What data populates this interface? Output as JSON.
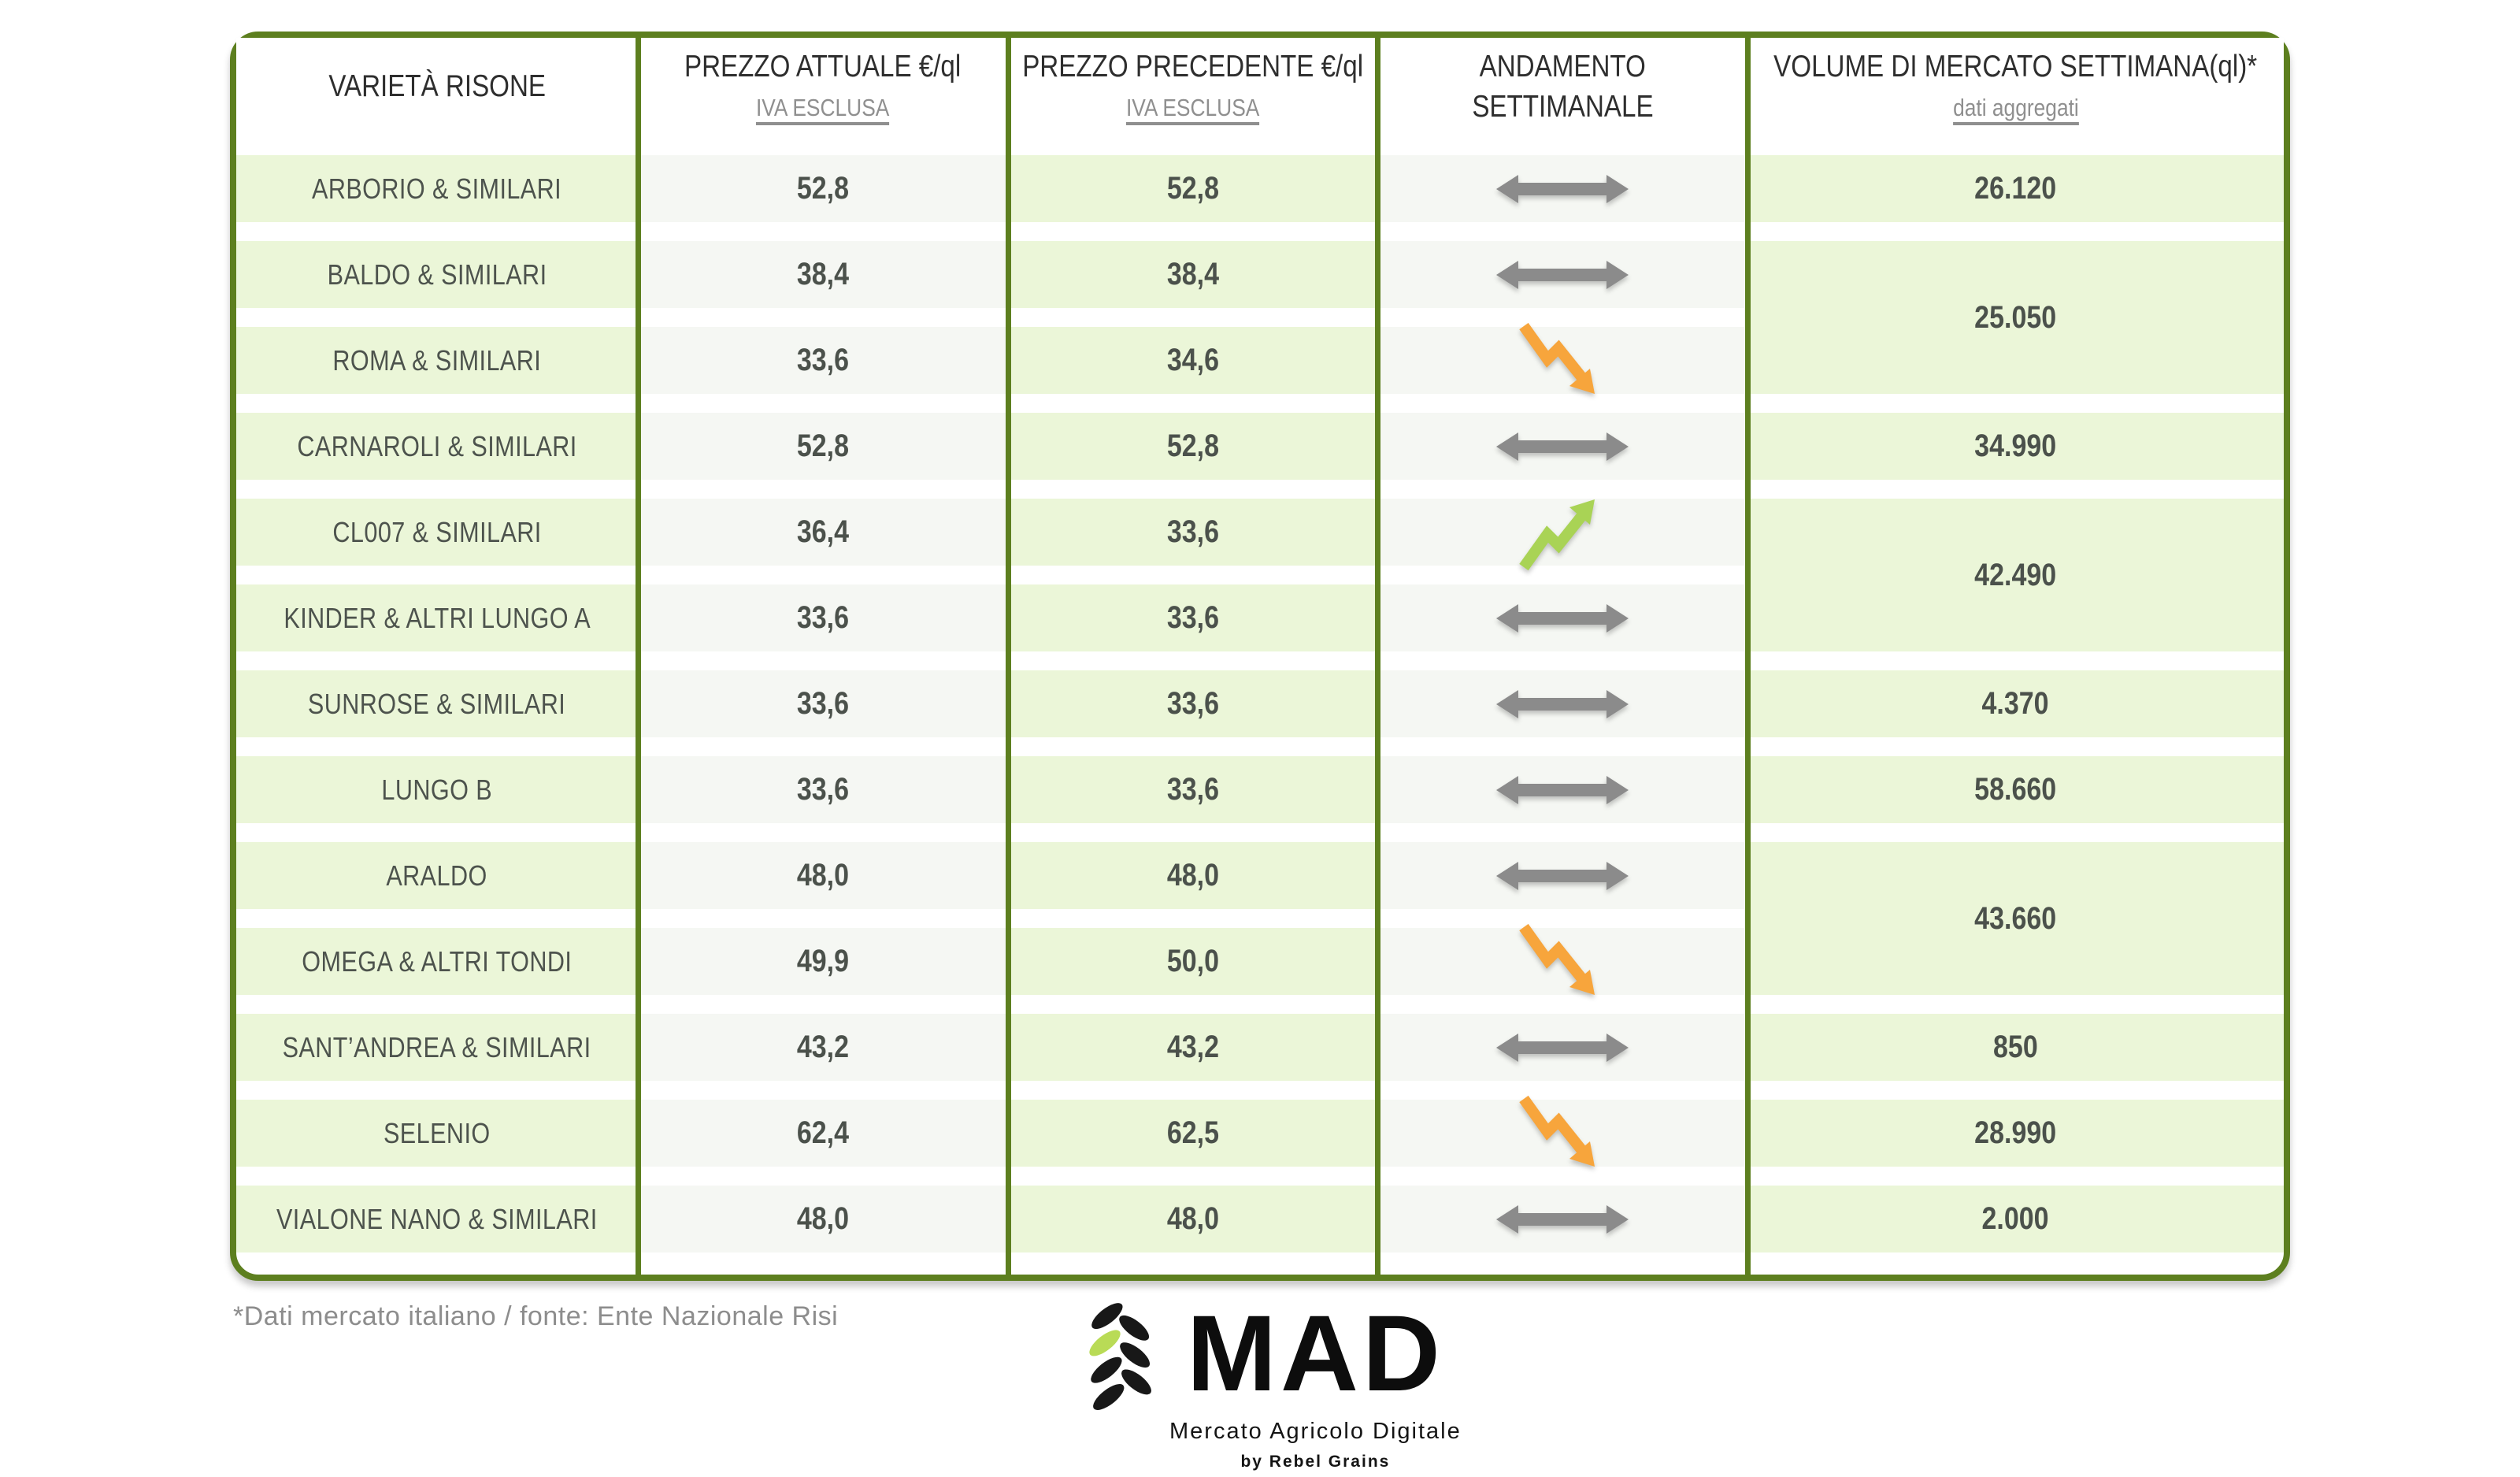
{
  "table": {
    "columns": [
      {
        "label": "VARIETÀ RISONE",
        "sublabel": ""
      },
      {
        "label": "PREZZO ATTUALE €/ql",
        "sublabel": "IVA ESCLUSA"
      },
      {
        "label": "PREZZO PRECEDENTE €/ql",
        "sublabel": "IVA ESCLUSA"
      },
      {
        "lines": [
          "ANDAMENTO",
          "SETTIMANALE"
        ],
        "sublabel": ""
      },
      {
        "label": "VOLUME DI MERCATO SETTIMANA(ql)*",
        "sublabel": "dati aggregati"
      }
    ],
    "rows": [
      {
        "variety": "ARBORIO & SIMILARI",
        "price_current": "52,8",
        "price_previous": "52,8",
        "trend": "flat"
      },
      {
        "variety": "BALDO & SIMILARI",
        "price_current": "38,4",
        "price_previous": "38,4",
        "trend": "flat"
      },
      {
        "variety": "ROMA & SIMILARI",
        "price_current": "33,6",
        "price_previous": "34,6",
        "trend": "down"
      },
      {
        "variety": "CARNAROLI & SIMILARI",
        "price_current": "52,8",
        "price_previous": "52,8",
        "trend": "flat"
      },
      {
        "variety": "CL007 & SIMILARI",
        "price_current": "36,4",
        "price_previous": "33,6",
        "trend": "up"
      },
      {
        "variety": "KINDER & ALTRI LUNGO A",
        "price_current": "33,6",
        "price_previous": "33,6",
        "trend": "flat"
      },
      {
        "variety": "SUNROSE & SIMILARI",
        "price_current": "33,6",
        "price_previous": "33,6",
        "trend": "flat"
      },
      {
        "variety": "LUNGO B",
        "price_current": "33,6",
        "price_previous": "33,6",
        "trend": "flat"
      },
      {
        "variety": "ARALDO",
        "price_current": "48,0",
        "price_previous": "48,0",
        "trend": "flat"
      },
      {
        "variety": "OMEGA & ALTRI TONDI",
        "price_current": "49,9",
        "price_previous": "50,0",
        "trend": "down"
      },
      {
        "variety": "SANT’ANDREA & SIMILARI",
        "price_current": "43,2",
        "price_previous": "43,2",
        "trend": "flat"
      },
      {
        "variety": "SELENIO",
        "price_current": "62,4",
        "price_previous": "62,5",
        "trend": "down"
      },
      {
        "variety": "VIALONE NANO & SIMILARI",
        "price_current": "48,0",
        "price_previous": "48,0",
        "trend": "flat"
      }
    ],
    "volumes": [
      {
        "value": "26.120",
        "rows": [
          0
        ]
      },
      {
        "value": "25.050",
        "rows": [
          1,
          2
        ]
      },
      {
        "value": "34.990",
        "rows": [
          3
        ]
      },
      {
        "value": "42.490",
        "rows": [
          4,
          5
        ]
      },
      {
        "value": "4.370",
        "rows": [
          6
        ]
      },
      {
        "value": "58.660",
        "rows": [
          7
        ]
      },
      {
        "value": "43.660",
        "rows": [
          8,
          9
        ]
      },
      {
        "value": "850",
        "rows": [
          10
        ]
      },
      {
        "value": "28.990",
        "rows": [
          11
        ]
      },
      {
        "value": "2.000",
        "rows": [
          12
        ]
      }
    ]
  },
  "footnote": "*Dati mercato italiano / fonte: Ente Nazionale Risi",
  "logo": {
    "title": "MAD",
    "subtitle": "Mercato Agricolo Digitale",
    "byline": "by Rebel Grains"
  },
  "colors": {
    "border_green": "#5d7f1f",
    "row_green": "#ebf6d8",
    "row_gray": "#f5f7f3",
    "arrow_gray": "#8b8b8b",
    "arrow_orange": "#f7a53c",
    "arrow_up_green": "#a9d355",
    "leaf_green": "#b9db56"
  }
}
